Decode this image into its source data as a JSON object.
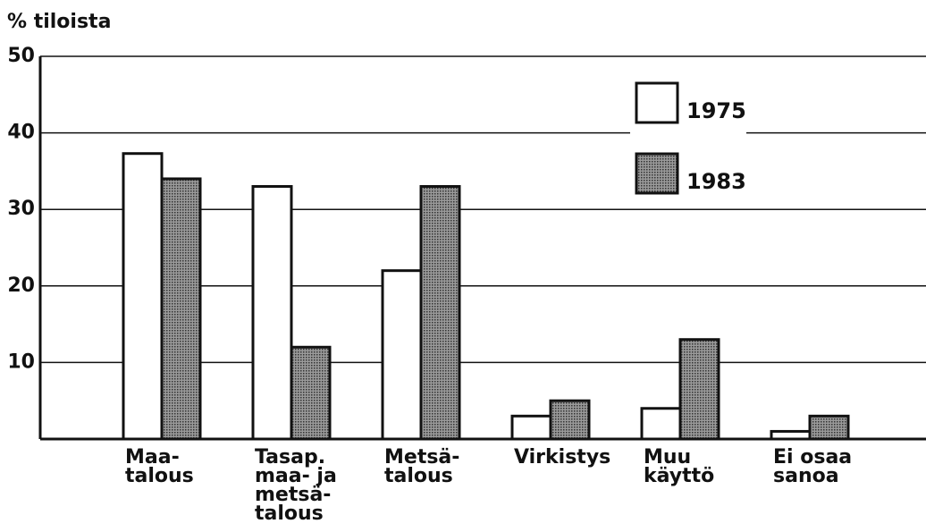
{
  "chart_data": {
    "type": "bar",
    "y_label": "% tiloista",
    "categories": [
      [
        "Maa-",
        "talous"
      ],
      [
        "Tasap.",
        "maa- ja",
        "metsä-",
        "talous"
      ],
      [
        "Metsä-",
        "talous"
      ],
      [
        "Virkistys"
      ],
      [
        "Muu",
        "käyttö"
      ],
      [
        "Ei osaa",
        "sanoa"
      ]
    ],
    "series": [
      {
        "name": "1975",
        "color": "#ffffff",
        "values": [
          37.3,
          33,
          22,
          3,
          4,
          1
        ]
      },
      {
        "name": "1983",
        "color": "#7a7a7a",
        "values": [
          34,
          12,
          33,
          5,
          13,
          3
        ]
      }
    ],
    "ylim": [
      0,
      50
    ],
    "yticks": [
      10,
      20,
      30,
      40,
      50
    ],
    "grid": true,
    "legend": "upper right"
  }
}
